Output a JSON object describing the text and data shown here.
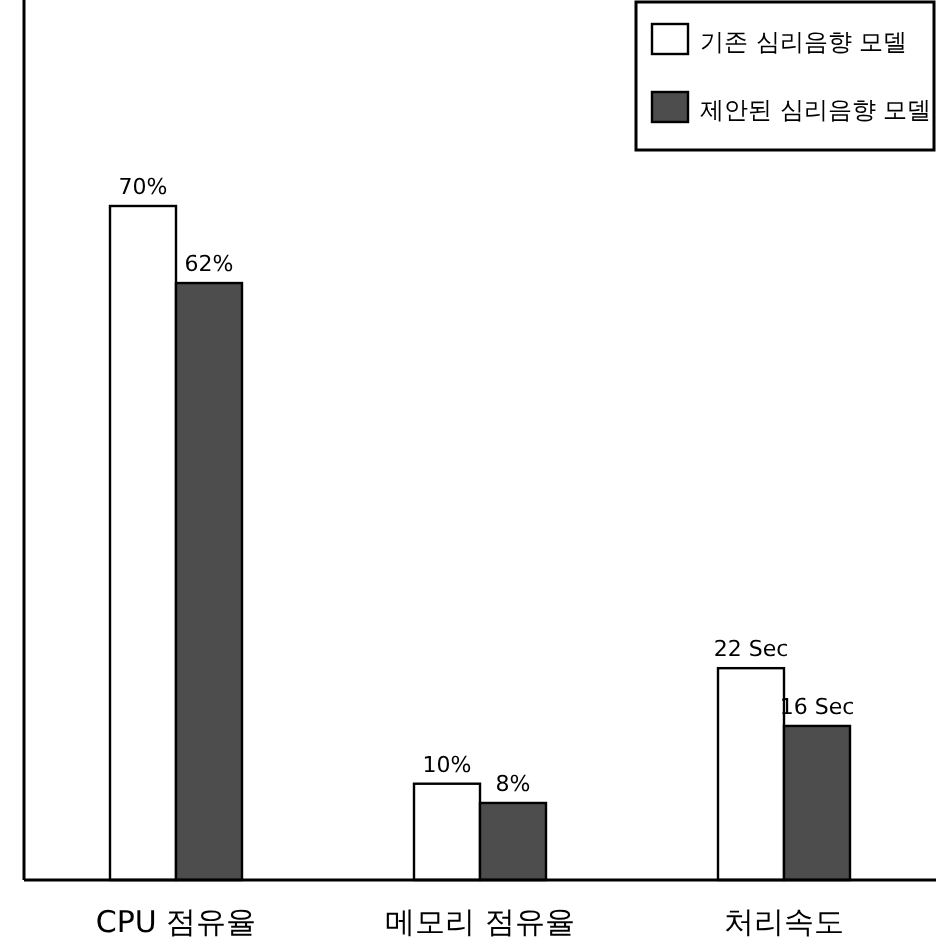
{
  "chart_data": {
    "type": "bar",
    "categories": [
      "CPU 점유율",
      "메모리 점유율",
      "처리속도"
    ],
    "legend": "top right",
    "series": [
      {
        "name": "기존 심리음향 모델",
        "color": "#ffffff",
        "values": [
          70,
          10,
          22
        ],
        "value_labels": [
          "70%",
          "10%",
          "22 Sec"
        ]
      },
      {
        "name": "제안된 심리음향 모델",
        "color": "#4d4d4d",
        "values": [
          62,
          8,
          16
        ],
        "value_labels": [
          "62%",
          "8%",
          "16 Sec"
        ]
      }
    ]
  }
}
